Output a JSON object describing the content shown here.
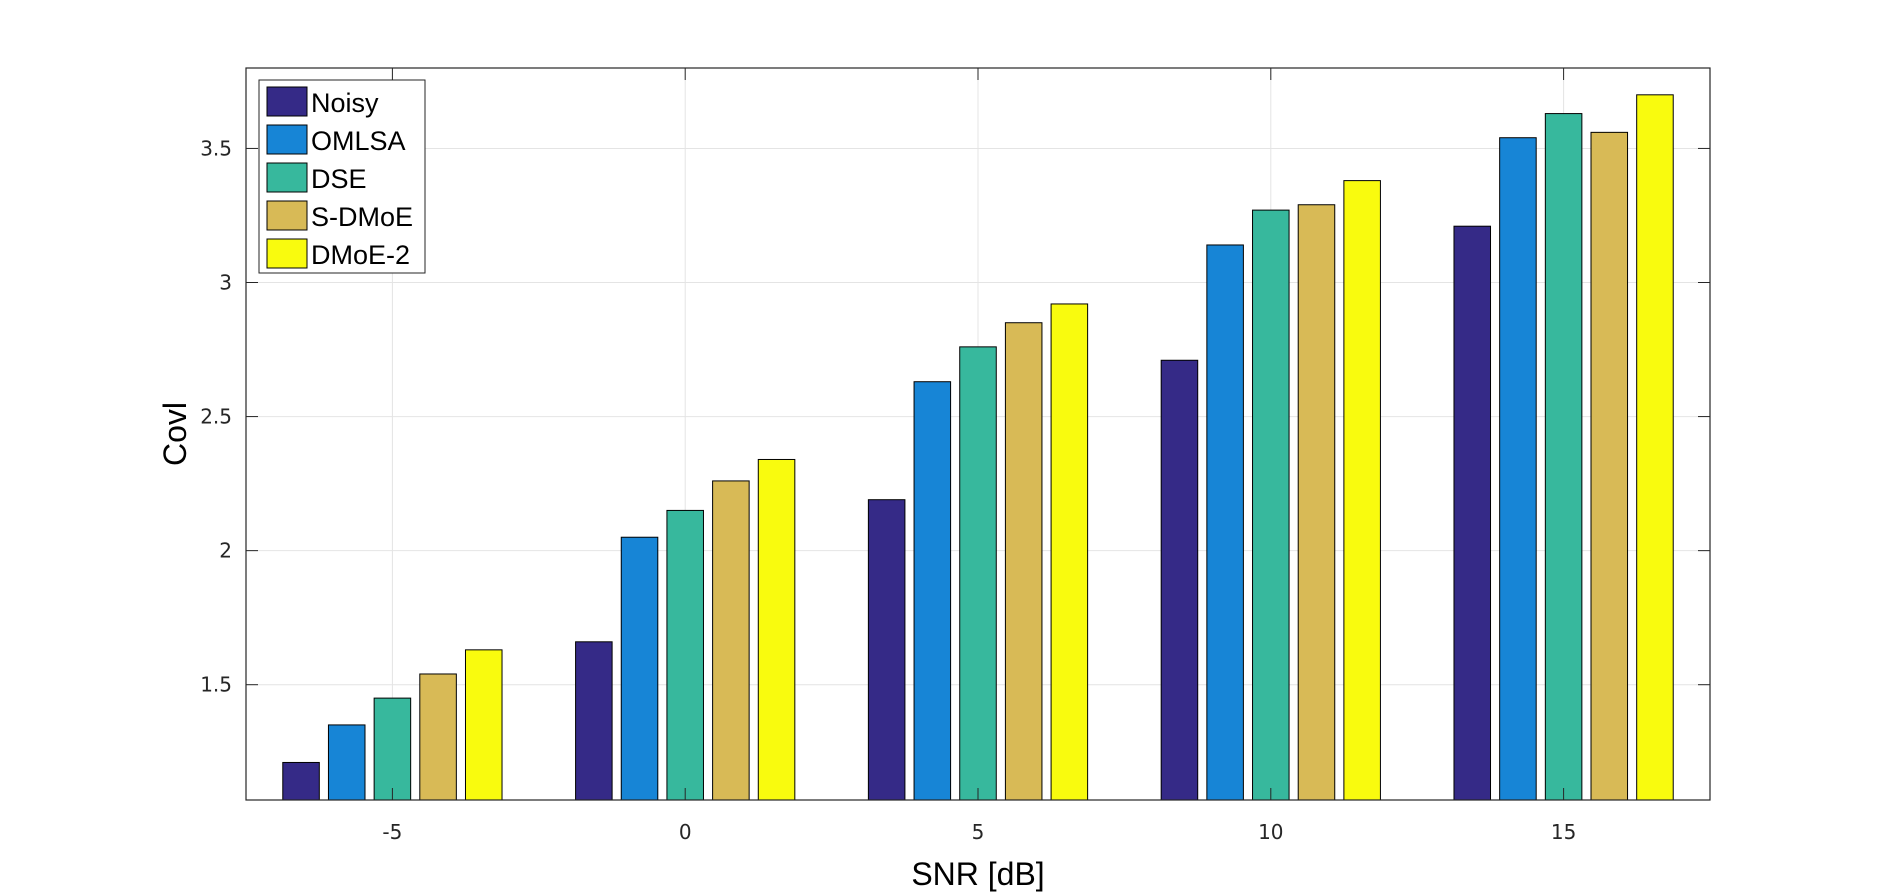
{
  "chart_data": {
    "type": "bar",
    "categories": [
      "-5",
      "0",
      "5",
      "10",
      "15"
    ],
    "series": [
      {
        "name": "Noisy",
        "color": "#352a87",
        "values": [
          1.21,
          1.66,
          2.19,
          2.71,
          3.21
        ]
      },
      {
        "name": "OMLSA",
        "color": "#1785d6",
        "values": [
          1.35,
          2.05,
          2.63,
          3.14,
          3.54
        ]
      },
      {
        "name": "DSE",
        "color": "#37b89d",
        "values": [
          1.45,
          2.15,
          2.76,
          3.27,
          3.63
        ]
      },
      {
        "name": "S-DMoE",
        "color": "#d8ba56",
        "values": [
          1.54,
          2.26,
          2.85,
          3.29,
          3.56
        ]
      },
      {
        "name": "DMoE-2",
        "color": "#f9fb0e",
        "values": [
          1.63,
          2.34,
          2.92,
          3.38,
          3.7
        ]
      }
    ],
    "title": "",
    "xlabel": "SNR [dB]",
    "ylabel": "Covl",
    "ylim": [
      1.07,
      3.8
    ],
    "yticks": [
      "1.5",
      "2",
      "2.5",
      "3",
      "3.5"
    ],
    "grid": true,
    "legend_position": "top-left"
  }
}
